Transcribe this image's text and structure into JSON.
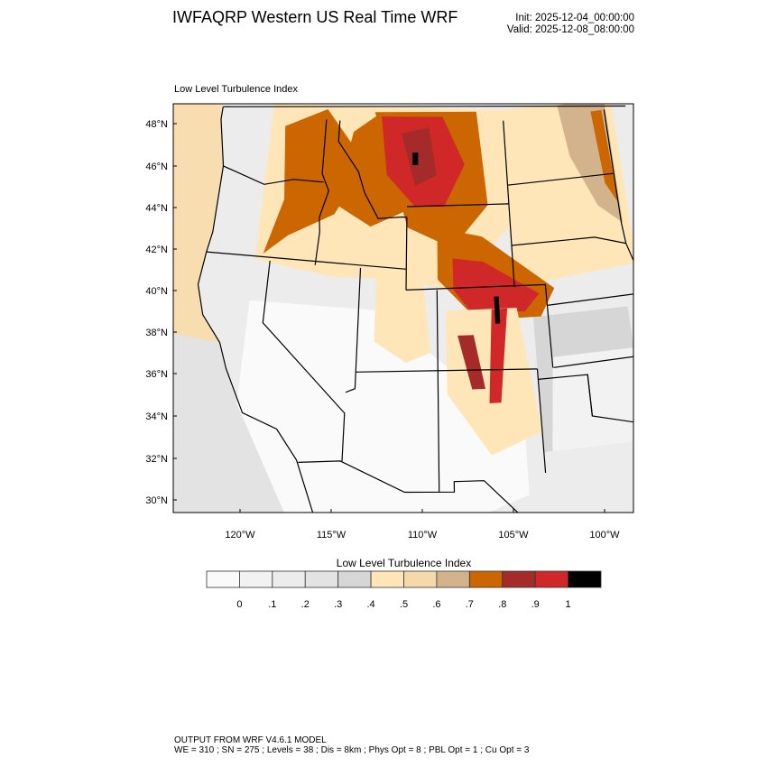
{
  "header": {
    "title": "IWFAQRP Western US Real Time WRF",
    "init": "Init: 2025-12-04_00:00:00",
    "valid": "Valid: 2025-12-08_08:00:00"
  },
  "map": {
    "field_title": "Low Level Turbulence Index",
    "lat_labels": [
      "48°N",
      "46°N",
      "44°N",
      "42°N",
      "40°N",
      "38°N",
      "36°N",
      "34°N",
      "32°N",
      "30°N"
    ],
    "lon_labels": [
      "120°W",
      "115°W",
      "110°W",
      "105°W",
      "100°W"
    ]
  },
  "colorbar": {
    "title": "Low Level Turbulence Index",
    "labels": [
      "0",
      ".1",
      ".2",
      ".3",
      ".4",
      ".5",
      ".6",
      ".7",
      ".8",
      ".9",
      "1"
    ],
    "colors": [
      "#fafafa",
      "#f2f2f2",
      "#ececec",
      "#e3e3e3",
      "#d6d6d6",
      "#fee6b8",
      "#f4d9aa",
      "#d2b38b",
      "#cc6600",
      "#a52a2a",
      "#d02828",
      "#000000"
    ]
  },
  "footer": {
    "line1": "OUTPUT FROM WRF V4.6.1 MODEL",
    "line2": "WE = 310 ; SN = 275 ; Levels = 38 ; Dis = 8km ; Phys Opt = 8 ; PBL Opt = 1 ; Cu Opt = 3"
  }
}
